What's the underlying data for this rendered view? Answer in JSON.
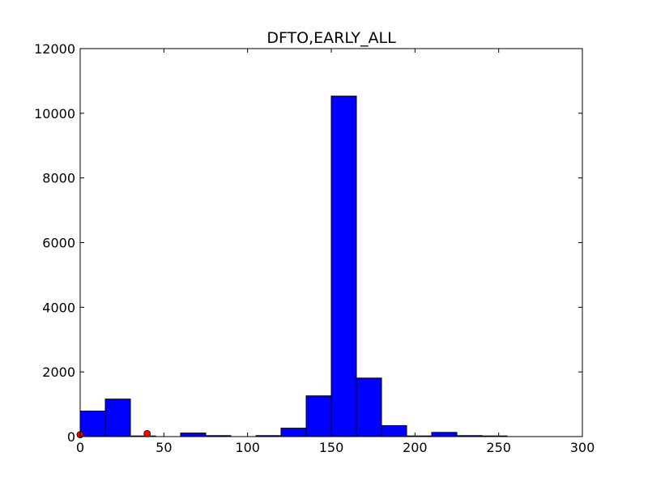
{
  "chart_data": {
    "type": "bar",
    "title": "DFTO,EARLY_ALL",
    "xlabel": "",
    "ylabel": "",
    "xlim": [
      0,
      300
    ],
    "ylim": [
      0,
      12000
    ],
    "x_ticks": [
      0,
      50,
      100,
      150,
      200,
      250,
      300
    ],
    "y_ticks": [
      0,
      2000,
      4000,
      6000,
      8000,
      10000,
      12000
    ],
    "grid": false,
    "legend": "none",
    "bin_width": 15,
    "bins": [
      {
        "x_start": 0,
        "x_end": 15,
        "value": 790
      },
      {
        "x_start": 15,
        "x_end": 30,
        "value": 1160
      },
      {
        "x_start": 30,
        "x_end": 45,
        "value": 20
      },
      {
        "x_start": 45,
        "x_end": 60,
        "value": 0
      },
      {
        "x_start": 60,
        "x_end": 75,
        "value": 110
      },
      {
        "x_start": 75,
        "x_end": 90,
        "value": 30
      },
      {
        "x_start": 90,
        "x_end": 105,
        "value": 0
      },
      {
        "x_start": 105,
        "x_end": 120,
        "value": 30
      },
      {
        "x_start": 120,
        "x_end": 135,
        "value": 260
      },
      {
        "x_start": 135,
        "x_end": 150,
        "value": 1260
      },
      {
        "x_start": 150,
        "x_end": 165,
        "value": 10530
      },
      {
        "x_start": 165,
        "x_end": 180,
        "value": 1810
      },
      {
        "x_start": 180,
        "x_end": 195,
        "value": 340
      },
      {
        "x_start": 195,
        "x_end": 210,
        "value": 20
      },
      {
        "x_start": 210,
        "x_end": 225,
        "value": 130
      },
      {
        "x_start": 225,
        "x_end": 240,
        "value": 30
      },
      {
        "x_start": 240,
        "x_end": 255,
        "value": 20
      },
      {
        "x_start": 255,
        "x_end": 270,
        "value": 0
      },
      {
        "x_start": 270,
        "x_end": 285,
        "value": 0
      },
      {
        "x_start": 285,
        "x_end": 300,
        "value": 0
      }
    ],
    "points": [
      {
        "x": 0,
        "y": 60
      },
      {
        "x": 40,
        "y": 90
      }
    ],
    "colors": {
      "bar_fill": "#0000ff",
      "bar_edge": "#000000",
      "point_fill": "#ff0000",
      "axis": "#000000",
      "background": "#ffffff"
    }
  }
}
